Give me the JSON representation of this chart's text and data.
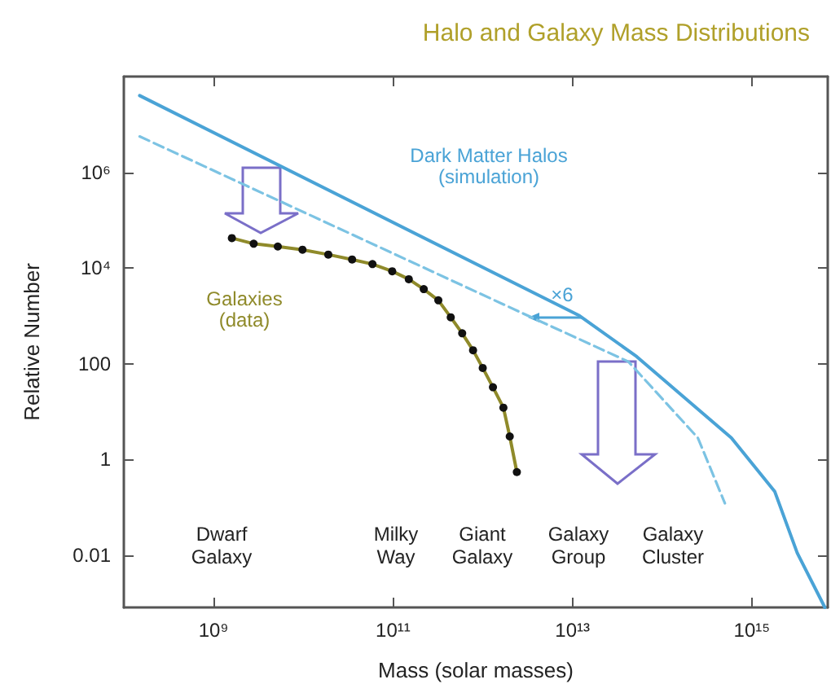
{
  "chart_data": {
    "type": "line",
    "title": "Halo and Galaxy Mass Distributions",
    "xlabel": "Mass (solar masses)",
    "ylabel": "Relative Number",
    "log": "xy",
    "grid": false,
    "legend": false,
    "xlim": [
      100000000.0,
      7000000000000000.0
    ],
    "ylim": [
      0.0008,
      100000000.0
    ],
    "xticks": [
      {
        "value": 1000000000.0,
        "label": "10⁹"
      },
      {
        "value": 100000000000.0,
        "label": "10¹¹"
      },
      {
        "value": 10000000000000.0,
        "label": "10¹³"
      },
      {
        "value": 1000000000000000.0,
        "label": "10¹⁵"
      }
    ],
    "yticks": [
      0.01,
      1,
      100,
      {
        "value": 10000,
        "label": "10⁴"
      },
      {
        "value": 1000000,
        "label": "10⁶"
      }
    ],
    "series": [
      {
        "name": "Dark Matter Halos\n(simulation)",
        "color": "#4aa3d6",
        "line_style": "solid",
        "marker": "none",
        "x": [
          150000000.0,
          12000000000000.0,
          52000000000000.0,
          590000000000000.0,
          1800000000000000.0,
          3200000000000000.0,
          6500000000000000.0
        ],
        "values": [
          40000000,
          1000,
          140,
          2.8,
          0.21,
          0.011,
          0.0008
        ]
      },
      {
        "color": "#7cc3e3",
        "line_style": "dashed",
        "marker": "none",
        "x": [
          150000000.0,
          3200000000000.0,
          42000000000000.0,
          250000000000000.0,
          500000000000000.0
        ],
        "values": [
          5600000,
          1000,
          110,
          2.8,
          0.12
        ]
      },
      {
        "name": "Galaxies\n(data)",
        "color": "#8f8a2a",
        "line_style": "solid",
        "marker": "circle",
        "x": [
          1600000000.0,
          2800000000.0,
          5200000000.0,
          9800000000.0,
          19000000000.0,
          35000000000.0,
          59000000000.0,
          98000000000.0,
          150000000000.0,
          220000000000.0,
          320000000000.0,
          440000000000.0,
          590000000000.0,
          780000000000.0,
          1000000000000.0,
          1300000000000.0,
          1700000000000.0,
          2000000000000.0,
          2400000000000.0
        ],
        "values": [
          42000,
          32000,
          28000,
          24000,
          19000,
          15000,
          12000,
          8500,
          5800,
          3600,
          2100,
          930,
          430,
          190,
          81,
          32,
          12,
          3,
          0.54
        ]
      }
    ],
    "annotations": [
      "×6",
      "Dwarf\nGalaxy",
      "Milky\nWay",
      "Giant\nGalaxy",
      "Galaxy\nGroup",
      "Galaxy\nCluster"
    ]
  }
}
